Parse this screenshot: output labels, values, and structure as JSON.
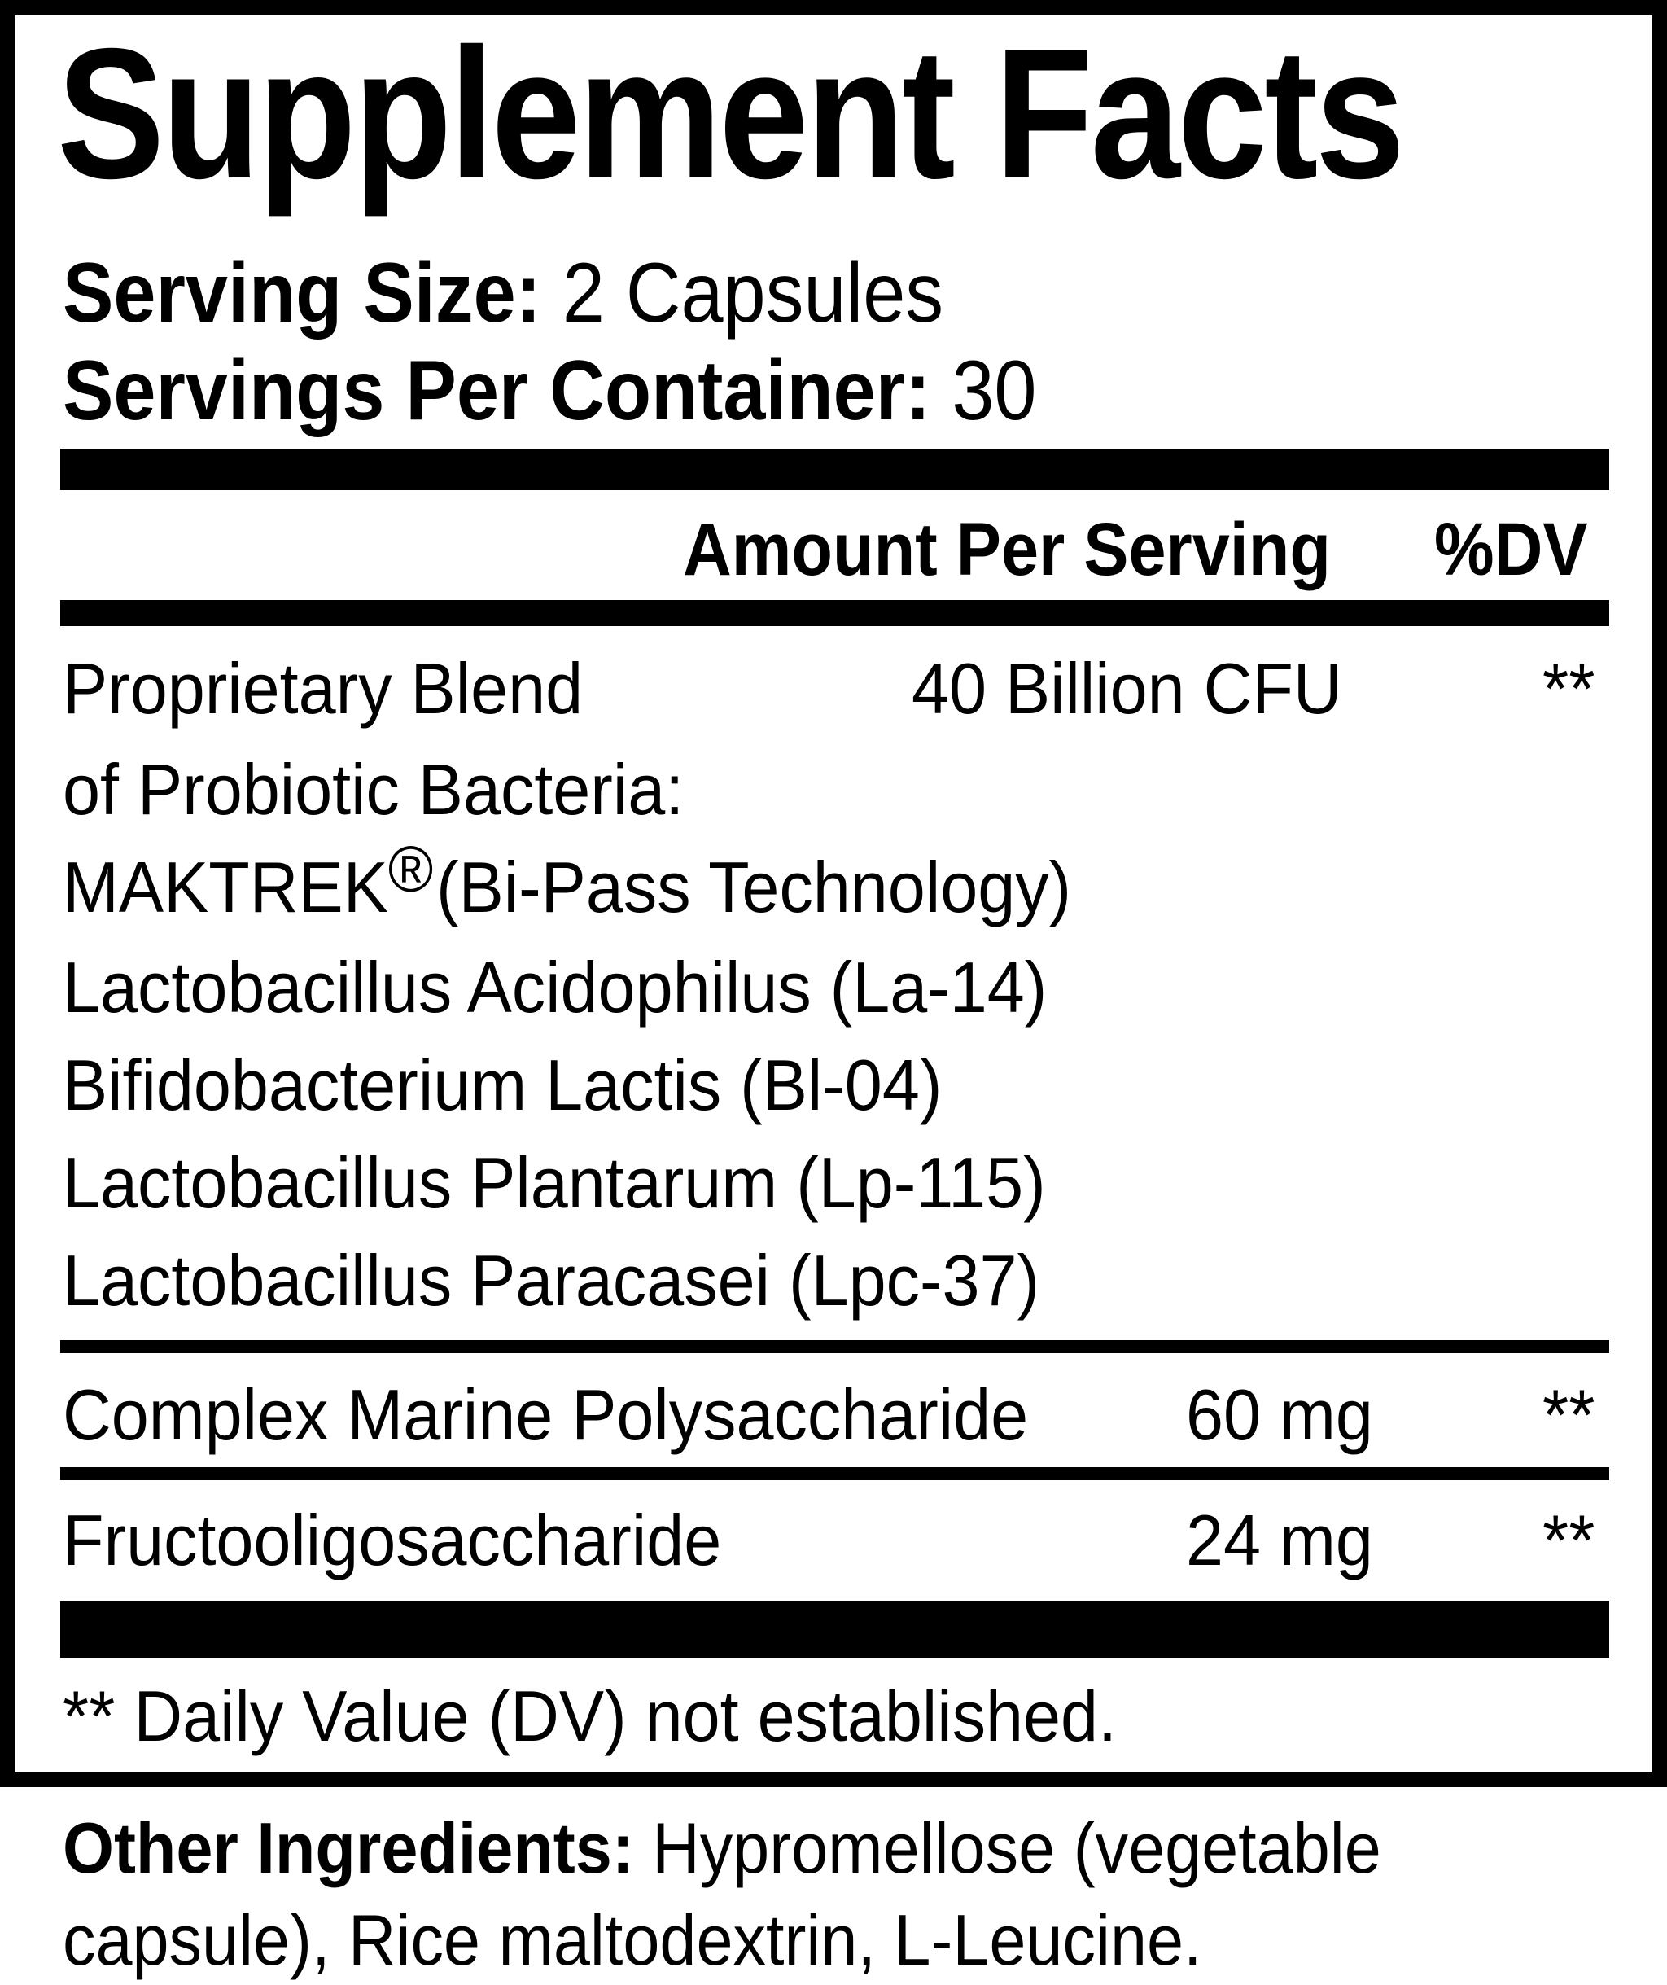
{
  "title": "Supplement Facts",
  "serving_size": {
    "label": "Serving Size:",
    "value": "2 Capsules"
  },
  "servings_per_container": {
    "label": "Servings Per Container:",
    "value": "30"
  },
  "header": {
    "amount": "Amount Per Serving",
    "dv": "%DV"
  },
  "blend": {
    "name_line1": "Proprietary Blend",
    "name_line2": "of Probiotic Bacteria:",
    "amount": "40 Billion CFU",
    "dv": "**",
    "brand": "MAKTREK",
    "brand_mark": "®",
    "brand_suffix": "(Bi-Pass Technology)",
    "strains": [
      "Lactobacillus Acidophilus (La-14)",
      "Bifidobacterium Lactis (Bl-04)",
      "Lactobacillus Plantarum (Lp-115)",
      "Lactobacillus Paracasei (Lpc-37)"
    ]
  },
  "ingredients": [
    {
      "name": "Complex Marine Polysaccharide",
      "amount": "60 mg",
      "dv": "**"
    },
    {
      "name": "Fructooligosaccharide",
      "amount": "24 mg",
      "dv": "**"
    }
  ],
  "footnote": "** Daily Value (DV) not established.",
  "other_ingredients": {
    "label": "Other Ingredients:",
    "line1": "Hypromellose (vegetable",
    "line2": "capsule), Rice maltodextrin, L-Leucine."
  }
}
